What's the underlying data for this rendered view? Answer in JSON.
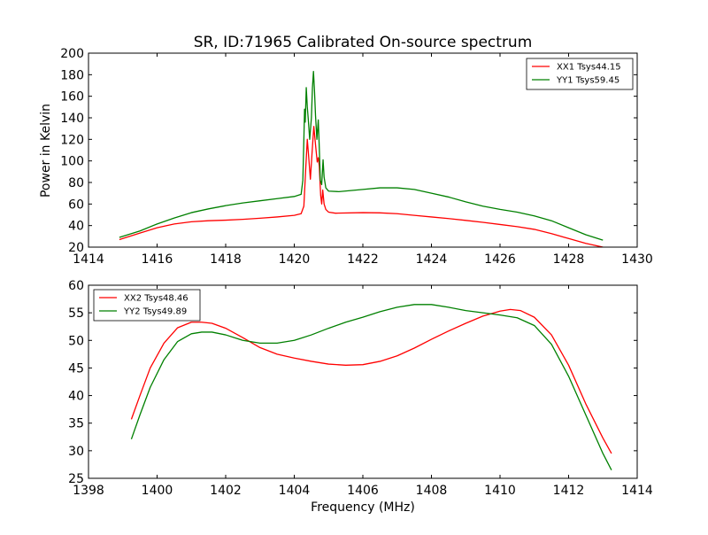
{
  "page_title": "SR, ID:71965 Calibrated On-source spectrum",
  "chart_data": [
    {
      "type": "line",
      "title": "SR, ID:71965 Calibrated On-source spectrum",
      "xlabel": "",
      "ylabel": "Power in Kelvin",
      "xlim": [
        1414,
        1430
      ],
      "ylim": [
        20,
        200
      ],
      "xticks": [
        1414,
        1416,
        1418,
        1420,
        1422,
        1424,
        1426,
        1428,
        1430
      ],
      "yticks": [
        20,
        40,
        60,
        80,
        100,
        120,
        140,
        160,
        180,
        200
      ],
      "legend_position": "top-right",
      "series": [
        {
          "name": "XX1 Tsys44.15",
          "color": "#ff0000",
          "points": [
            [
              1414.9,
              27
            ],
            [
              1415.5,
              33
            ],
            [
              1416.0,
              38
            ],
            [
              1416.5,
              41.5
            ],
            [
              1417.0,
              43.5
            ],
            [
              1417.5,
              44.5
            ],
            [
              1418.0,
              45
            ],
            [
              1418.5,
              45.8
            ],
            [
              1419.0,
              46.8
            ],
            [
              1419.5,
              48
            ],
            [
              1420.0,
              49.5
            ],
            [
              1420.2,
              51
            ],
            [
              1420.28,
              58
            ],
            [
              1420.33,
              90
            ],
            [
              1420.38,
              120
            ],
            [
              1420.42,
              104
            ],
            [
              1420.47,
              83
            ],
            [
              1420.52,
              108
            ],
            [
              1420.57,
              132
            ],
            [
              1420.62,
              115
            ],
            [
              1420.67,
              99
            ],
            [
              1420.7,
              103
            ],
            [
              1420.73,
              95
            ],
            [
              1420.77,
              68
            ],
            [
              1420.8,
              60
            ],
            [
              1420.83,
              73
            ],
            [
              1420.87,
              60
            ],
            [
              1420.92,
              55
            ],
            [
              1421.0,
              52.5
            ],
            [
              1421.2,
              51.5
            ],
            [
              1422.0,
              52
            ],
            [
              1422.5,
              51.8
            ],
            [
              1423.0,
              51
            ],
            [
              1423.5,
              49.5
            ],
            [
              1424.0,
              48
            ],
            [
              1424.5,
              46.5
            ],
            [
              1425.0,
              44.8
            ],
            [
              1425.5,
              43
            ],
            [
              1426.0,
              41
            ],
            [
              1426.5,
              39
            ],
            [
              1427.0,
              36.5
            ],
            [
              1427.5,
              32.5
            ],
            [
              1428.0,
              28
            ],
            [
              1428.5,
              23.5
            ],
            [
              1429.0,
              20
            ]
          ]
        },
        {
          "name": "YY1 Tsys59.45",
          "color": "#008000",
          "points": [
            [
              1414.9,
              29
            ],
            [
              1415.5,
              35
            ],
            [
              1416.0,
              41.5
            ],
            [
              1416.5,
              47
            ],
            [
              1417.0,
              52
            ],
            [
              1417.5,
              55.5
            ],
            [
              1418.0,
              58.5
            ],
            [
              1418.5,
              61
            ],
            [
              1419.0,
              63
            ],
            [
              1419.5,
              65
            ],
            [
              1420.0,
              67
            ],
            [
              1420.2,
              69
            ],
            [
              1420.25,
              82
            ],
            [
              1420.28,
              120
            ],
            [
              1420.3,
              148
            ],
            [
              1420.32,
              136
            ],
            [
              1420.35,
              168
            ],
            [
              1420.38,
              150
            ],
            [
              1420.41,
              138
            ],
            [
              1420.45,
              120
            ],
            [
              1420.5,
              140
            ],
            [
              1420.53,
              168
            ],
            [
              1420.56,
              183
            ],
            [
              1420.59,
              165
            ],
            [
              1420.62,
              142
            ],
            [
              1420.66,
              120
            ],
            [
              1420.7,
              138
            ],
            [
              1420.73,
              112
            ],
            [
              1420.76,
              82
            ],
            [
              1420.8,
              78
            ],
            [
              1420.84,
              101
            ],
            [
              1420.87,
              85
            ],
            [
              1420.92,
              75
            ],
            [
              1421.0,
              72
            ],
            [
              1421.3,
              71.5
            ],
            [
              1422.0,
              73.5
            ],
            [
              1422.5,
              75
            ],
            [
              1423.0,
              75
            ],
            [
              1423.5,
              73.5
            ],
            [
              1424.0,
              70
            ],
            [
              1424.5,
              66.5
            ],
            [
              1425.0,
              62
            ],
            [
              1425.5,
              58
            ],
            [
              1426.0,
              55
            ],
            [
              1426.5,
              52.5
            ],
            [
              1427.0,
              49
            ],
            [
              1427.5,
              44.5
            ],
            [
              1428.0,
              38
            ],
            [
              1428.5,
              31.5
            ],
            [
              1429.0,
              26.5
            ]
          ]
        }
      ]
    },
    {
      "type": "line",
      "title": "",
      "xlabel": "Frequency (MHz)",
      "ylabel": "",
      "xlim": [
        1398,
        1414
      ],
      "ylim": [
        25,
        60
      ],
      "xticks": [
        1398,
        1400,
        1402,
        1404,
        1406,
        1408,
        1410,
        1412,
        1414
      ],
      "yticks": [
        25,
        30,
        35,
        40,
        45,
        50,
        55,
        60
      ],
      "legend_position": "top-left",
      "series": [
        {
          "name": "XX2 Tsys48.46",
          "color": "#ff0000",
          "points": [
            [
              1399.25,
              35.7
            ],
            [
              1399.5,
              40
            ],
            [
              1399.8,
              45
            ],
            [
              1400.2,
              49.5
            ],
            [
              1400.6,
              52.3
            ],
            [
              1401.0,
              53.3
            ],
            [
              1401.3,
              53.3
            ],
            [
              1401.6,
              53.1
            ],
            [
              1402.0,
              52.2
            ],
            [
              1402.5,
              50.5
            ],
            [
              1403.0,
              48.7
            ],
            [
              1403.5,
              47.5
            ],
            [
              1404.0,
              46.8
            ],
            [
              1404.5,
              46.2
            ],
            [
              1405.0,
              45.7
            ],
            [
              1405.5,
              45.5
            ],
            [
              1406.0,
              45.6
            ],
            [
              1406.5,
              46.2
            ],
            [
              1407.0,
              47.2
            ],
            [
              1407.5,
              48.6
            ],
            [
              1408.0,
              50.2
            ],
            [
              1408.5,
              51.7
            ],
            [
              1409.0,
              53.1
            ],
            [
              1409.5,
              54.4
            ],
            [
              1410.0,
              55.3
            ],
            [
              1410.3,
              55.6
            ],
            [
              1410.6,
              55.4
            ],
            [
              1411.0,
              54.2
            ],
            [
              1411.5,
              51
            ],
            [
              1412.0,
              45.5
            ],
            [
              1412.5,
              38.5
            ],
            [
              1413.0,
              32.3
            ],
            [
              1413.25,
              29.5
            ]
          ]
        },
        {
          "name": "YY2 Tsys49.89",
          "color": "#008000",
          "points": [
            [
              1399.25,
              32.1
            ],
            [
              1399.5,
              36.5
            ],
            [
              1399.8,
              41.5
            ],
            [
              1400.2,
              46.5
            ],
            [
              1400.6,
              49.8
            ],
            [
              1401.0,
              51.2
            ],
            [
              1401.3,
              51.5
            ],
            [
              1401.6,
              51.5
            ],
            [
              1402.0,
              51
            ],
            [
              1402.5,
              50
            ],
            [
              1403.0,
              49.5
            ],
            [
              1403.5,
              49.5
            ],
            [
              1404.0,
              50
            ],
            [
              1404.5,
              51
            ],
            [
              1405.0,
              52.2
            ],
            [
              1405.5,
              53.3
            ],
            [
              1406.0,
              54.2
            ],
            [
              1406.5,
              55.2
            ],
            [
              1407.0,
              56
            ],
            [
              1407.5,
              56.5
            ],
            [
              1408.0,
              56.5
            ],
            [
              1408.5,
              56
            ],
            [
              1409.0,
              55.4
            ],
            [
              1409.5,
              55
            ],
            [
              1410.0,
              54.6
            ],
            [
              1410.5,
              54.1
            ],
            [
              1411.0,
              52.7
            ],
            [
              1411.5,
              49.3
            ],
            [
              1412.0,
              43.5
            ],
            [
              1412.5,
              36.5
            ],
            [
              1413.0,
              29.5
            ],
            [
              1413.25,
              26.5
            ]
          ]
        }
      ]
    }
  ]
}
